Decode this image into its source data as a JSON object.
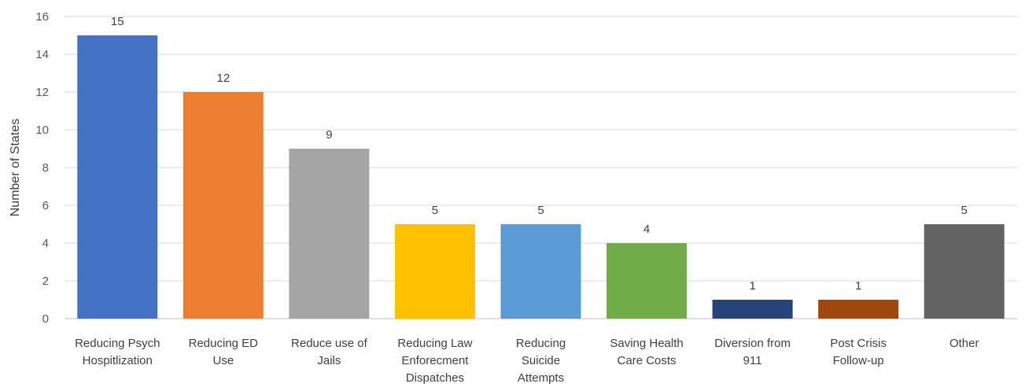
{
  "chart_data": {
    "type": "bar",
    "title": "",
    "xlabel": "",
    "ylabel": "Number of States",
    "ylim": [
      0,
      16
    ],
    "yticks": [
      0,
      2,
      4,
      6,
      8,
      10,
      12,
      14,
      16
    ],
    "grid": true,
    "legend": "none",
    "categories": [
      [
        "Reducing Psych",
        "Hospitlization"
      ],
      [
        "Reducing ED",
        "Use"
      ],
      [
        "Reduce use of",
        "Jails"
      ],
      [
        "Reducing Law",
        "Enforecment",
        "Dispatches"
      ],
      [
        "Reducing",
        "Suicide",
        "Attempts"
      ],
      [
        "Saving Health",
        "Care Costs"
      ],
      [
        "Diversion from",
        "911"
      ],
      [
        "Post Crisis",
        "Follow-up"
      ],
      [
        "Other"
      ]
    ],
    "values": [
      15,
      12,
      9,
      5,
      5,
      4,
      1,
      1,
      5
    ],
    "colors": [
      "#4472c4",
      "#ed7d31",
      "#a5a5a5",
      "#ffc000",
      "#5b9bd5",
      "#70ad47",
      "#264478",
      "#9e480e",
      "#636363"
    ]
  }
}
